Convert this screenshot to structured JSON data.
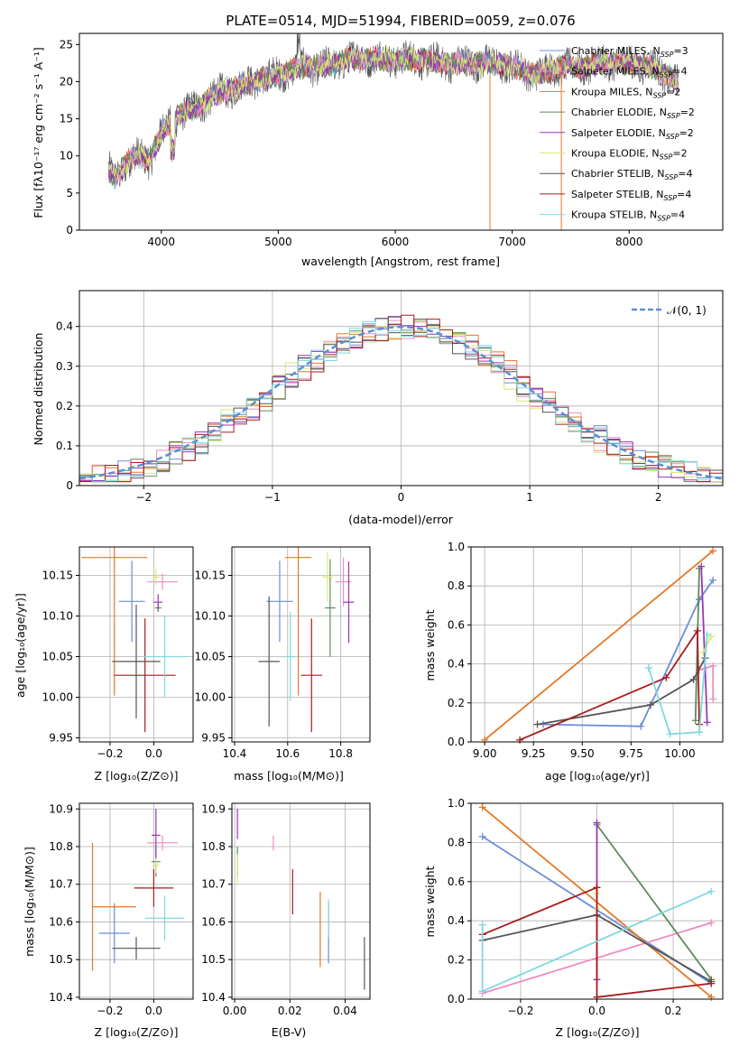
{
  "colors": [
    "#6a8ed9",
    "#f08cc2",
    "#e37828",
    "#5e8a5e",
    "#9b35b6",
    "#d8e878",
    "#555555",
    "#a81c1c",
    "#7fd8df"
  ],
  "chart_data": [
    {
      "type": "line",
      "title": "PLATE=0514, MJD=51994, FIBERID=0059, z=0.076",
      "xlabel": "wavelength [Angstrom, rest frame]",
      "ylabel": "Flux [fλ10⁻¹⁷ erg cm⁻² s⁻¹ A⁻¹]",
      "xlim": [
        3300,
        8800
      ],
      "ylim": [
        0,
        26.5
      ],
      "xticks": [
        4000,
        5000,
        6000,
        7000,
        8000
      ],
      "yticks": [
        0,
        5,
        10,
        15,
        20,
        25
      ],
      "grid": false,
      "legend_placement": "right",
      "series_names": [
        "Chabrier MILES, N_SSP=3",
        "Salpeter MILES, N_SSP=4",
        "Kroupa MILES, N_SSP=2",
        "Chabrier ELODIE, N_SSP=2",
        "Salpeter ELODIE, N_SSP=2",
        "Kroupa ELODIE, N_SSP=2",
        "Chabrier STELIB, N_SSP=4",
        "Salpeter STELIB, N_SSP=4",
        "Kroupa STELIB, N_SSP=4"
      ],
      "continuum": {
        "x": [
          3550,
          3600,
          3700,
          3800,
          3900,
          4000,
          4100,
          4300,
          4500,
          4800,
          5000,
          5200,
          5400,
          5600,
          5800,
          6000,
          6200,
          6400,
          6600,
          6800,
          7000,
          7200,
          7400,
          7600,
          7800,
          8000,
          8200,
          8400
        ],
        "y": [
          8,
          7,
          9,
          10,
          9.5,
          13,
          15,
          16.5,
          18.5,
          20,
          21,
          22,
          22,
          23,
          23.2,
          23,
          23,
          22.5,
          22.5,
          22.5,
          22,
          21,
          22,
          22,
          22.5,
          22.5,
          22,
          20
        ]
      }
    },
    {
      "type": "step",
      "xlabel": "(data-model)/error",
      "ylabel": "Normed distribution",
      "xlim": [
        -2.5,
        2.5
      ],
      "ylim": [
        0,
        0.49
      ],
      "xticks": [
        -2,
        -1,
        0,
        1,
        2
      ],
      "yticks": [
        0.0,
        0.1,
        0.2,
        0.3,
        0.4
      ],
      "grid": true,
      "legend": [
        "𝒩(0, 1)"
      ],
      "legend_placement": "top-right",
      "bin_width": 0.1
    },
    {
      "type": "scatter",
      "xlabel": "Z [log₁₀(Z/Z⊙)]",
      "ylabel": "age  [log₁₀(age/yr)]",
      "xlim": [
        -0.34,
        0.18
      ],
      "ylim": [
        9.945,
        10.185
      ],
      "xticks": [
        -0.2,
        0.0
      ],
      "yticks": [
        9.95,
        10.0,
        10.05,
        10.1,
        10.15
      ],
      "xtick_labels": [
        "−0.2",
        "0.0"
      ],
      "ytick_labels": [
        "9.95",
        "10.00",
        "10.05",
        "10.10",
        "10.15"
      ],
      "grid": true,
      "points": [
        {
          "x": -0.1,
          "y": 10.118,
          "xerr": 0.06,
          "yerr": 0.05
        },
        {
          "x": 0.04,
          "y": 10.142,
          "xerr": 0.07,
          "yerr": 0.01
        },
        {
          "x": -0.18,
          "y": 10.172,
          "xerr": 0.15,
          "yerr": 0.17
        },
        {
          "x": 0.02,
          "y": 10.11,
          "xerr": 0.015,
          "yerr": 0.005
        },
        {
          "x": 0.02,
          "y": 10.117,
          "xerr": 0.02,
          "yerr": 0.01
        },
        {
          "x": 0.01,
          "y": 10.148,
          "xerr": 0.015,
          "yerr": 0.01
        },
        {
          "x": -0.08,
          "y": 10.044,
          "xerr": 0.11,
          "yerr": 0.07
        },
        {
          "x": -0.04,
          "y": 10.027,
          "xerr": 0.14,
          "yerr": 0.07
        },
        {
          "x": 0.05,
          "y": 10.05,
          "xerr": 0.1,
          "yerr": 0.05
        }
      ]
    },
    {
      "type": "scatter",
      "xlabel": "mass [log₁₀(M/M⊙)]",
      "xlim": [
        10.39,
        10.91
      ],
      "ylim": [
        9.945,
        10.185
      ],
      "xticks": [
        10.4,
        10.6,
        10.8
      ],
      "yticks": [
        9.95,
        10.0,
        10.05,
        10.1,
        10.15
      ],
      "xtick_labels": [
        "10.4",
        "10.6",
        "10.8"
      ],
      "ytick_labels": [
        "9.95",
        "10.00",
        "10.05",
        "10.10",
        "10.15"
      ],
      "grid": true,
      "points": [
        {
          "x": 10.57,
          "y": 10.118,
          "xerr": 0.05,
          "yerr": 0.05
        },
        {
          "x": 10.81,
          "y": 10.142,
          "xerr": 0.03,
          "yerr": 0.03
        },
        {
          "x": 10.64,
          "y": 10.172,
          "xerr": 0.05,
          "yerr": 0.17
        },
        {
          "x": 10.76,
          "y": 10.11,
          "xerr": 0.02,
          "yerr": 0.06
        },
        {
          "x": 10.83,
          "y": 10.117,
          "xerr": 0.02,
          "yerr": 0.05
        },
        {
          "x": 10.75,
          "y": 10.148,
          "xerr": 0.02,
          "yerr": 0.03
        },
        {
          "x": 10.53,
          "y": 10.044,
          "xerr": 0.04,
          "yerr": 0.08
        },
        {
          "x": 10.69,
          "y": 10.027,
          "xerr": 0.04,
          "yerr": 0.07
        },
        {
          "x": 10.61,
          "y": 10.05,
          "xerr": 0.02,
          "yerr": 0.055
        }
      ]
    },
    {
      "type": "line",
      "xlabel": "age  [log₁₀(age/yr)]",
      "ylabel": "mass weight",
      "xlim": [
        8.93,
        10.22
      ],
      "ylim": [
        0,
        1
      ],
      "xticks": [
        9.0,
        9.25,
        9.5,
        9.75,
        10.0
      ],
      "yticks": [
        0.0,
        0.2,
        0.4,
        0.6,
        0.8,
        1.0
      ],
      "xtick_labels": [
        "9.00",
        "9.25",
        "9.50",
        "9.75",
        "10.00"
      ],
      "ytick_labels": [
        "0.0",
        "0.2",
        "0.4",
        "0.6",
        "0.8",
        "1.0"
      ],
      "grid": true,
      "series": [
        {
          "x": [
            9.3,
            9.8,
            10.1,
            10.17
          ],
          "y": [
            0.09,
            0.08,
            0.73,
            0.83
          ]
        },
        {
          "x": [
            10.1,
            10.17,
            10.17
          ],
          "y": [
            0.37,
            0.39,
            0.22
          ]
        },
        {
          "x": [
            9.0,
            10.17
          ],
          "y": [
            0.01,
            0.98
          ]
        },
        {
          "x": [
            10.08,
            10.1
          ],
          "y": [
            0.11,
            0.89
          ]
        },
        {
          "x": [
            10.11,
            10.14
          ],
          "y": [
            0.9,
            0.1
          ]
        },
        {
          "x": [
            10.12,
            10.16
          ],
          "y": [
            0.46,
            0.54
          ]
        },
        {
          "x": [
            9.27,
            9.85,
            10.07,
            10.13
          ],
          "y": [
            0.09,
            0.19,
            0.32,
            0.43
          ]
        },
        {
          "x": [
            9.18,
            9.93,
            10.09,
            10.1
          ],
          "y": [
            0.01,
            0.33,
            0.57,
            0.09
          ]
        },
        {
          "x": [
            9.84,
            9.95,
            10.1,
            10.14
          ],
          "y": [
            0.38,
            0.04,
            0.05,
            0.55
          ]
        }
      ]
    },
    {
      "type": "scatter",
      "xlabel": "Z [log₁₀(Z/Z⊙)]",
      "ylabel": "mass [log₁₀(M/M⊙)]",
      "xlim": [
        -0.34,
        0.18
      ],
      "ylim": [
        10.395,
        10.915
      ],
      "xticks": [
        -0.2,
        0.0
      ],
      "yticks": [
        10.4,
        10.5,
        10.6,
        10.7,
        10.8,
        10.9
      ],
      "xtick_labels": [
        "−0.2",
        "0.0"
      ],
      "ytick_labels": [
        "10.4",
        "10.5",
        "10.6",
        "10.7",
        "10.8",
        "10.9"
      ],
      "grid": true,
      "points": [
        {
          "x": -0.18,
          "y": 10.57,
          "xerr": 0.07,
          "yerr": 0.08
        },
        {
          "x": 0.04,
          "y": 10.81,
          "xerr": 0.07,
          "yerr": 0.02
        },
        {
          "x": -0.28,
          "y": 10.64,
          "xerr": 0.0,
          "yerr": 0.17
        },
        {
          "x": 0.01,
          "y": 10.76,
          "xerr": 0.02,
          "yerr": 0.04
        },
        {
          "x": 0.01,
          "y": 10.83,
          "xerr": 0.02,
          "yerr": 0.07
        },
        {
          "x": 0.01,
          "y": 10.75,
          "xerr": 0.015,
          "yerr": 0.02
        },
        {
          "x": -0.08,
          "y": 10.53,
          "xerr": 0.11,
          "yerr": 0.03
        },
        {
          "x": 0.0,
          "y": 10.69,
          "xerr": 0.09,
          "yerr": 0.05
        },
        {
          "x": 0.05,
          "y": 10.61,
          "xerr": 0.09,
          "yerr": 0.06
        }
      ],
      "extra_hline": {
        "x1": -0.28,
        "x2": -0.08,
        "y": 10.64
      }
    },
    {
      "type": "scatter",
      "xlabel": "E(B-V)",
      "xlim": [
        -0.001,
        0.049
      ],
      "ylim": [
        10.395,
        10.915
      ],
      "xticks": [
        0.0,
        0.02,
        0.04
      ],
      "yticks": [
        10.4,
        10.5,
        10.6,
        10.7,
        10.8,
        10.9
      ],
      "xtick_labels": [
        "0.00",
        "0.02",
        "0.04"
      ],
      "ytick_labels": [
        "10.4",
        "10.5",
        "10.6",
        "10.7",
        "10.8",
        "10.9"
      ],
      "grid": true,
      "points": [
        {
          "x": 0.034,
          "y": 10.57,
          "xerr": 0,
          "yerr": 0.08
        },
        {
          "x": 0.014,
          "y": 10.81,
          "xerr": 0,
          "yerr": 0.02
        },
        {
          "x": 0.031,
          "y": 10.58,
          "xerr": 0,
          "yerr": 0.1
        },
        {
          "x": 0.001,
          "y": 10.76,
          "xerr": 0,
          "yerr": 0.04
        },
        {
          "x": 0.001,
          "y": 10.86,
          "xerr": 0,
          "yerr": 0.04
        },
        {
          "x": 0.001,
          "y": 10.74,
          "xerr": 0,
          "yerr": 0.04
        },
        {
          "x": 0.047,
          "y": 10.49,
          "xerr": 0,
          "yerr": 0.07
        },
        {
          "x": 0.021,
          "y": 10.68,
          "xerr": 0,
          "yerr": 0.06
        },
        {
          "x": 0.034,
          "y": 10.61,
          "xerr": 0,
          "yerr": 0.05
        }
      ]
    },
    {
      "type": "line",
      "xlabel": "Z [log₁₀(Z/Z⊙)]",
      "ylabel": "mass weight",
      "xlim": [
        -0.33,
        0.33
      ],
      "ylim": [
        0,
        1
      ],
      "xticks": [
        -0.2,
        0.0,
        0.2
      ],
      "yticks": [
        0.0,
        0.2,
        0.4,
        0.6,
        0.8,
        1.0
      ],
      "xtick_labels": [
        "−0.2",
        "0.0",
        "0.2"
      ],
      "ytick_labels": [
        "0.0",
        "0.2",
        "0.4",
        "0.6",
        "0.8",
        "1.0"
      ],
      "grid": true,
      "series": [
        {
          "x": [
            -0.3,
            0.3
          ],
          "y": [
            0.83,
            0.08
          ]
        },
        {
          "x": [
            -0.3,
            0.3
          ],
          "y": [
            0.03,
            0.39
          ]
        },
        {
          "x": [
            -0.3,
            0.3
          ],
          "y": [
            0.98,
            0.01
          ]
        },
        {
          "x": [
            0.0,
            0.3
          ],
          "y": [
            0.89,
            0.1
          ]
        },
        {
          "x": [
            0.0,
            0.0
          ],
          "y": [
            0.9,
            0.1
          ]
        },
        {
          "x": [
            0.0,
            0.0
          ],
          "y": [
            0.46,
            0.54
          ]
        },
        {
          "x": [
            -0.3,
            0.0,
            0.3
          ],
          "y": [
            0.3,
            0.43,
            0.09
          ]
        },
        {
          "x": [
            -0.3,
            0.0,
            0.0,
            0.3
          ],
          "y": [
            0.33,
            0.57,
            0.01,
            0.08
          ]
        },
        {
          "x": [
            -0.3,
            -0.3,
            0.3
          ],
          "y": [
            0.38,
            0.04,
            0.55
          ]
        }
      ]
    }
  ]
}
